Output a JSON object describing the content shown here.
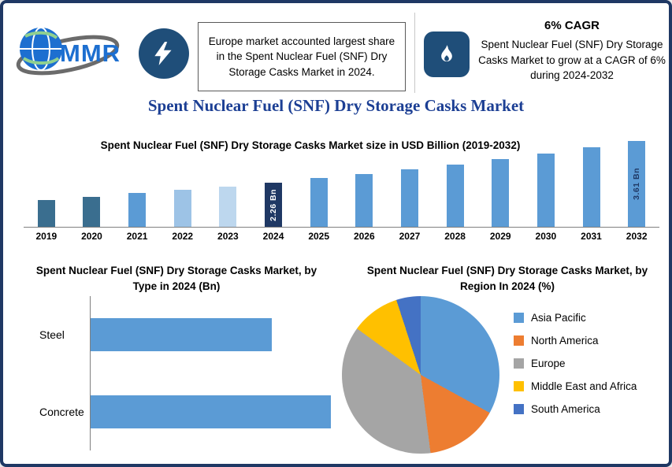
{
  "header": {
    "logo": {
      "text": "MMR"
    },
    "left_callout": {
      "icon": "lightning-icon",
      "text": "Europe market accounted largest share in the Spent Nuclear Fuel (SNF) Dry Storage Casks Market in 2024."
    },
    "right_callout": {
      "icon": "flame-icon",
      "title": "6% CAGR",
      "text": "Spent Nuclear Fuel (SNF) Dry Storage Casks Market to grow at a CAGR of 6% during 2024-2032"
    }
  },
  "page_title": "Spent Nuclear Fuel (SNF) Dry Storage Casks Market",
  "colors": {
    "border_navy": "#1F3864",
    "icon_navy": "#1F4E79",
    "title_blue": "#1C3F94",
    "primary_bar_blue": "#5B9BD5"
  },
  "chart_data": [
    {
      "type": "bar",
      "title": "Spent Nuclear Fuel (SNF) Dry Storage Casks Market size in USD Billion (2019-2032)",
      "categories": [
        "2019",
        "2020",
        "2021",
        "2022",
        "2023",
        "2024",
        "2025",
        "2026",
        "2027",
        "2028",
        "2029",
        "2030",
        "2031",
        "2032"
      ],
      "values": [
        1.69,
        1.79,
        1.9,
        2.01,
        2.13,
        2.26,
        2.4,
        2.54,
        2.69,
        2.85,
        3.02,
        3.21,
        3.4,
        3.61
      ],
      "unit": "USD Billion",
      "ylim": [
        0.8,
        3.8
      ],
      "grid": false,
      "bar_colors": [
        "#3A6E8F",
        "#3A6E8F",
        "#5B9BD5",
        "#9DC3E6",
        "#BDD7EE",
        "#1F3864",
        "#5B9BD5",
        "#5B9BD5",
        "#5B9BD5",
        "#5B9BD5",
        "#5B9BD5",
        "#5B9BD5",
        "#5B9BD5",
        "#5B9BD5"
      ],
      "bar_labels": [
        "",
        "",
        "",
        "",
        "",
        "2.26 Bn",
        "",
        "",
        "",
        "",
        "",
        "",
        "",
        "3.61 Bn"
      ],
      "bar_label_colors": [
        "",
        "",
        "",
        "",
        "",
        "#FFFFFF",
        "",
        "",
        "",
        "",
        "",
        "",
        "",
        "#1F3864"
      ]
    },
    {
      "type": "bar",
      "orientation": "horizontal",
      "title": "Spent Nuclear Fuel (SNF) Dry Storage Casks Market, by Type in 2024 (Bn)",
      "categories": [
        "Steel",
        "Concrete"
      ],
      "values": [
        0.97,
        1.29
      ],
      "xlim": [
        0,
        1.5
      ],
      "unit": "Bn",
      "bar_color": "#5B9BD5"
    },
    {
      "type": "pie",
      "title": "Spent Nuclear Fuel (SNF) Dry Storage Casks Market, by Region In 2024 (%)",
      "labels": [
        "Asia Pacific",
        "North America",
        "Europe",
        "Middle East and Africa",
        "South America"
      ],
      "values": [
        33,
        15,
        37,
        10,
        5
      ],
      "colors": [
        "#5B9BD5",
        "#ED7D31",
        "#A5A5A5",
        "#FFC000",
        "#4472C4"
      ],
      "legend_position": "right"
    }
  ]
}
